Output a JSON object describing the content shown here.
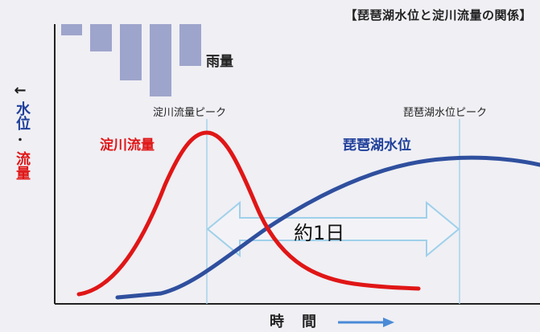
{
  "title": "【琵琶湖水位と淀川流量の関係】",
  "y_axis": {
    "arrow": "←",
    "part1": "水位",
    "separator": "・",
    "part2": "流量"
  },
  "x_axis": {
    "label": "時間"
  },
  "rain_label": "雨量",
  "peak_labels": {
    "yodo": "淀川流量ピーク",
    "biwa": "琵琶湖水位ピーク"
  },
  "series_labels": {
    "yodo": "淀川流量",
    "biwa": "琵琶湖水位"
  },
  "interval_label": "約1日",
  "colors": {
    "yodo": "#e01616",
    "biwa": "#2f4f9e",
    "rain": "#9ea5cc",
    "marker": "#a9d4ea",
    "arrow": "#c9e3f3"
  }
}
